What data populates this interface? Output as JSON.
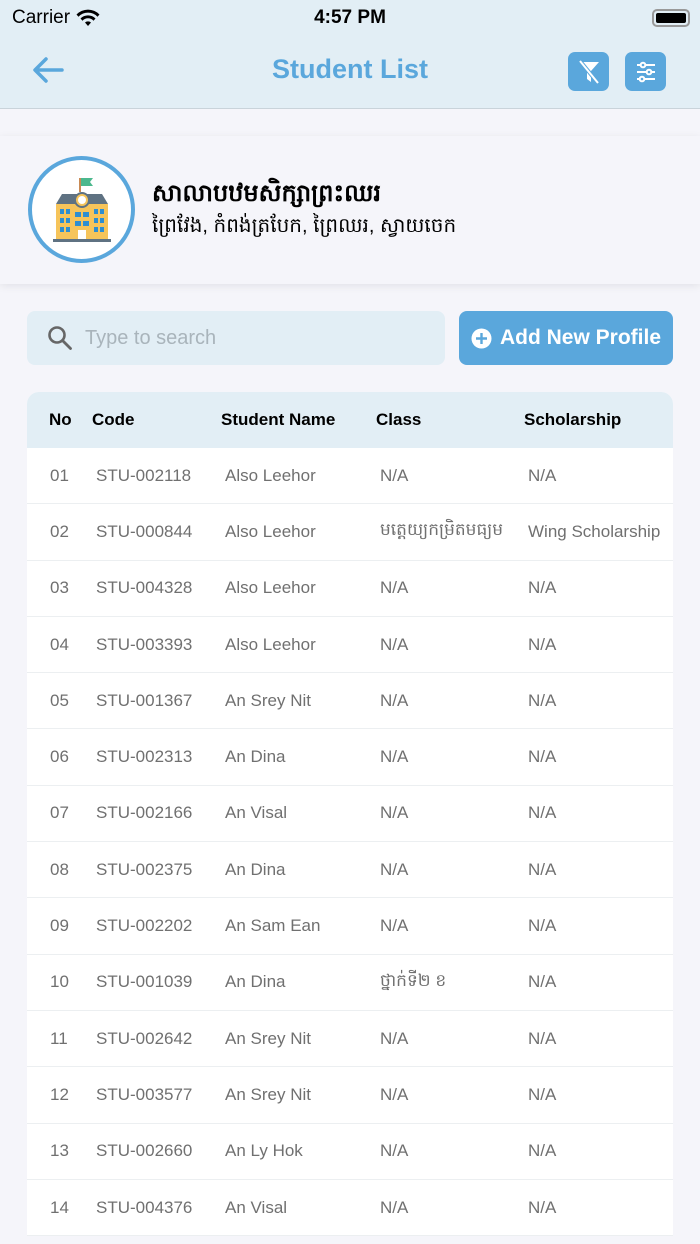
{
  "status": {
    "carrier": "Carrier",
    "time": "4:57 PM"
  },
  "header": {
    "title": "Student List",
    "icons": [
      "arrow-left-icon",
      "filter-off-icon",
      "sliders-icon"
    ]
  },
  "school": {
    "name": "សាលាបឋមសិក្សាព្រះឈរ",
    "address": "ព្រៃវែង, កំពង់ត្របែក, ព្រៃឈរ, ស្វាយចេក"
  },
  "search": {
    "placeholder": "Type to search",
    "value": ""
  },
  "add_button": {
    "label": "Add New Profile"
  },
  "colors": {
    "accent": "#5aa7dc",
    "header_bg": "#e2eef5"
  },
  "table": {
    "columns": [
      "No",
      "Code",
      "Student Name",
      "Class",
      "Scholarship"
    ],
    "rows": [
      [
        "01",
        "STU-002118",
        "Also Leehor",
        "N/A",
        "N/A"
      ],
      [
        "02",
        "STU-000844",
        "Also Leehor",
        "មត្តេយ្យកម្រិតមធ្យម",
        "Wing Scholarship"
      ],
      [
        "03",
        "STU-004328",
        "Also Leehor",
        "N/A",
        "N/A"
      ],
      [
        "04",
        "STU-003393",
        "Also Leehor",
        "N/A",
        "N/A"
      ],
      [
        "05",
        "STU-001367",
        "An Srey Nit",
        "N/A",
        "N/A"
      ],
      [
        "06",
        "STU-002313",
        "An Dina",
        "N/A",
        "N/A"
      ],
      [
        "07",
        "STU-002166",
        "An Visal",
        "N/A",
        "N/A"
      ],
      [
        "08",
        "STU-002375",
        "An Dina",
        "N/A",
        "N/A"
      ],
      [
        "09",
        "STU-002202",
        "An Sam Ean",
        "N/A",
        "N/A"
      ],
      [
        "10",
        "STU-001039",
        "An Dina",
        "ថ្នាក់ទី២ ខ",
        "N/A"
      ],
      [
        "11",
        "STU-002642",
        "An Srey Nit",
        "N/A",
        "N/A"
      ],
      [
        "12",
        "STU-003577",
        "An Srey Nit",
        "N/A",
        "N/A"
      ],
      [
        "13",
        "STU-002660",
        "An Ly Hok",
        "N/A",
        "N/A"
      ],
      [
        "14",
        "STU-004376",
        "An Visal",
        "N/A",
        "N/A"
      ]
    ]
  }
}
